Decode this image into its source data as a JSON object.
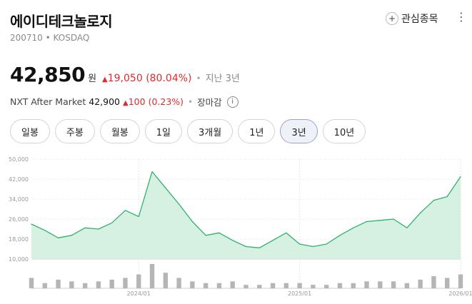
{
  "stock": {
    "name": "에이디테크놀로지",
    "code": "200710",
    "market": "KOSDAQ",
    "price": "42,850",
    "unit": "원",
    "change": "19,050",
    "change_pct": "(80.04%)",
    "period": "지난 3년"
  },
  "nxt": {
    "label": "NXT After Market",
    "price": "42,900",
    "change": "100",
    "change_pct": "(0.23%)",
    "status": "장마감"
  },
  "header": {
    "watch_label": "관심종목",
    "more_icon": "more-vertical-icon"
  },
  "tabs": [
    {
      "label": "일봉",
      "active": false
    },
    {
      "label": "주봉",
      "active": false
    },
    {
      "label": "월봉",
      "active": false
    },
    {
      "label": "1일",
      "active": false
    },
    {
      "label": "3개월",
      "active": false
    },
    {
      "label": "1년",
      "active": false
    },
    {
      "label": "3년",
      "active": true
    },
    {
      "label": "10년",
      "active": false
    }
  ],
  "colors": {
    "up": "#e02a2a",
    "line": "#2fb26a",
    "area": "#d6f1e1",
    "volume": "#b5b5b5"
  },
  "chart_data": {
    "type": "area",
    "x": [
      "2023/05",
      "2023/06",
      "2023/07",
      "2023/08",
      "2023/09",
      "2023/10",
      "2023/11",
      "2023/12",
      "2024/01",
      "2024/02",
      "2024/03",
      "2024/04",
      "2024/05",
      "2024/06",
      "2024/07",
      "2024/08",
      "2024/09",
      "2024/10",
      "2024/11",
      "2024/12",
      "2025/01",
      "2025/02",
      "2025/03",
      "2025/04",
      "2025/05",
      "2025/06",
      "2025/07",
      "2025/08",
      "2025/09",
      "2025/10",
      "2025/11",
      "2025/12",
      "2026/01"
    ],
    "values": [
      24000,
      21500,
      18500,
      19500,
      22500,
      22000,
      24500,
      29500,
      27000,
      45000,
      38500,
      32000,
      25000,
      19500,
      20500,
      17500,
      15000,
      14500,
      17500,
      20500,
      16000,
      15000,
      16000,
      19500,
      22500,
      25000,
      25500,
      26000,
      22500,
      28500,
      33500,
      35000,
      43000
    ],
    "volume": [
      6,
      3,
      5,
      4,
      3,
      4,
      5,
      6,
      8,
      14,
      9,
      6,
      4,
      3,
      3,
      4,
      2,
      2,
      3,
      3,
      3,
      2,
      2,
      3,
      3,
      4,
      4,
      4,
      3,
      5,
      7,
      6,
      8
    ],
    "ylim": [
      10000,
      50000
    ],
    "yticks": [
      "50,000",
      "42,000",
      "34,000",
      "26,000",
      "18,000",
      "10,000"
    ],
    "xticks": [
      "2024/01",
      "2025/01",
      "2026/01"
    ],
    "grid": true
  }
}
